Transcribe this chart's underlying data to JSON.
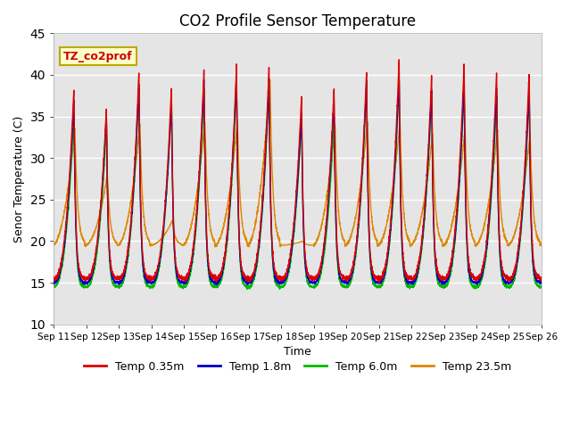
{
  "title": "CO2 Profile Sensor Temperature",
  "ylabel": "Senor Temperature (C)",
  "xlabel": "Time",
  "ylim": [
    10,
    45
  ],
  "background_color": "#e5e5e5",
  "grid_color": "white",
  "annotation_text": "TZ_co2prof",
  "annotation_bg": "#ffffcc",
  "annotation_border": "#bbaa00",
  "series": [
    {
      "label": "Temp 0.35m",
      "color": "#dd0000"
    },
    {
      "label": "Temp 1.8m",
      "color": "#0000cc"
    },
    {
      "label": "Temp 6.0m",
      "color": "#00bb00"
    },
    {
      "label": "Temp 23.5m",
      "color": "#dd8800"
    }
  ],
  "x_tick_labels": [
    "Sep 11",
    "Sep 12",
    "Sep 13",
    "Sep 14",
    "Sep 15",
    "Sep 16",
    "Sep 17",
    "Sep 18",
    "Sep 19",
    "Sep 20",
    "Sep 21",
    "Sep 22",
    "Sep 23",
    "Sep 24",
    "Sep 25",
    "Sep 26"
  ],
  "num_days": 15,
  "pts_per_day": 288
}
